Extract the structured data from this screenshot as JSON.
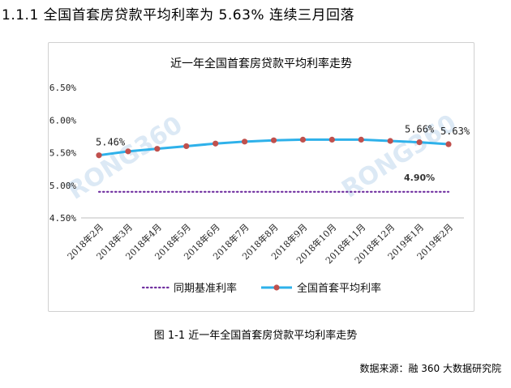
{
  "page": {
    "heading": "1.1.1  全国首套房贷款平均利率为 5.63% 连续三月回落",
    "caption": "图 1-1  近一年全国首套房贷款平均利率走势",
    "source": "数据来源：融 360 大数据研究院",
    "watermark": "RONG360"
  },
  "chart_data": {
    "type": "line",
    "title": "近一年全国首套房贷款平均利率走势",
    "categories": [
      "2018年2月",
      "2018年3月",
      "2018年4月",
      "2018年5月",
      "2018年6月",
      "2018年7月",
      "2018年8月",
      "2018年9月",
      "2018年10月",
      "2018年11月",
      "2018年12月",
      "2019年1月",
      "2019年2月"
    ],
    "ylim": [
      4.5,
      6.5
    ],
    "yticks": [
      "4.50%",
      "5.00%",
      "5.50%",
      "6.00%",
      "6.50%"
    ],
    "series": [
      {
        "name": "同期基准利率",
        "color": "#7030a0",
        "style": "dotted",
        "values": [
          4.9,
          4.9,
          4.9,
          4.9,
          4.9,
          4.9,
          4.9,
          4.9,
          4.9,
          4.9,
          4.9,
          4.9,
          4.9
        ]
      },
      {
        "name": "全国首套平均利率",
        "color": "#2eb1ea",
        "marker_color": "#c0504d",
        "style": "solid",
        "values": [
          5.46,
          5.52,
          5.56,
          5.6,
          5.64,
          5.67,
          5.69,
          5.7,
          5.7,
          5.7,
          5.68,
          5.66,
          5.63
        ]
      }
    ],
    "annotations": [
      {
        "series": 1,
        "index": 0,
        "text": "5.46%"
      },
      {
        "series": 1,
        "index": 11,
        "text": "5.66%"
      },
      {
        "series": 1,
        "index": 12,
        "text": "5.63%"
      },
      {
        "series": 0,
        "index": 11,
        "text": "4.90%"
      }
    ],
    "legend": "bottom",
    "grid": false
  }
}
